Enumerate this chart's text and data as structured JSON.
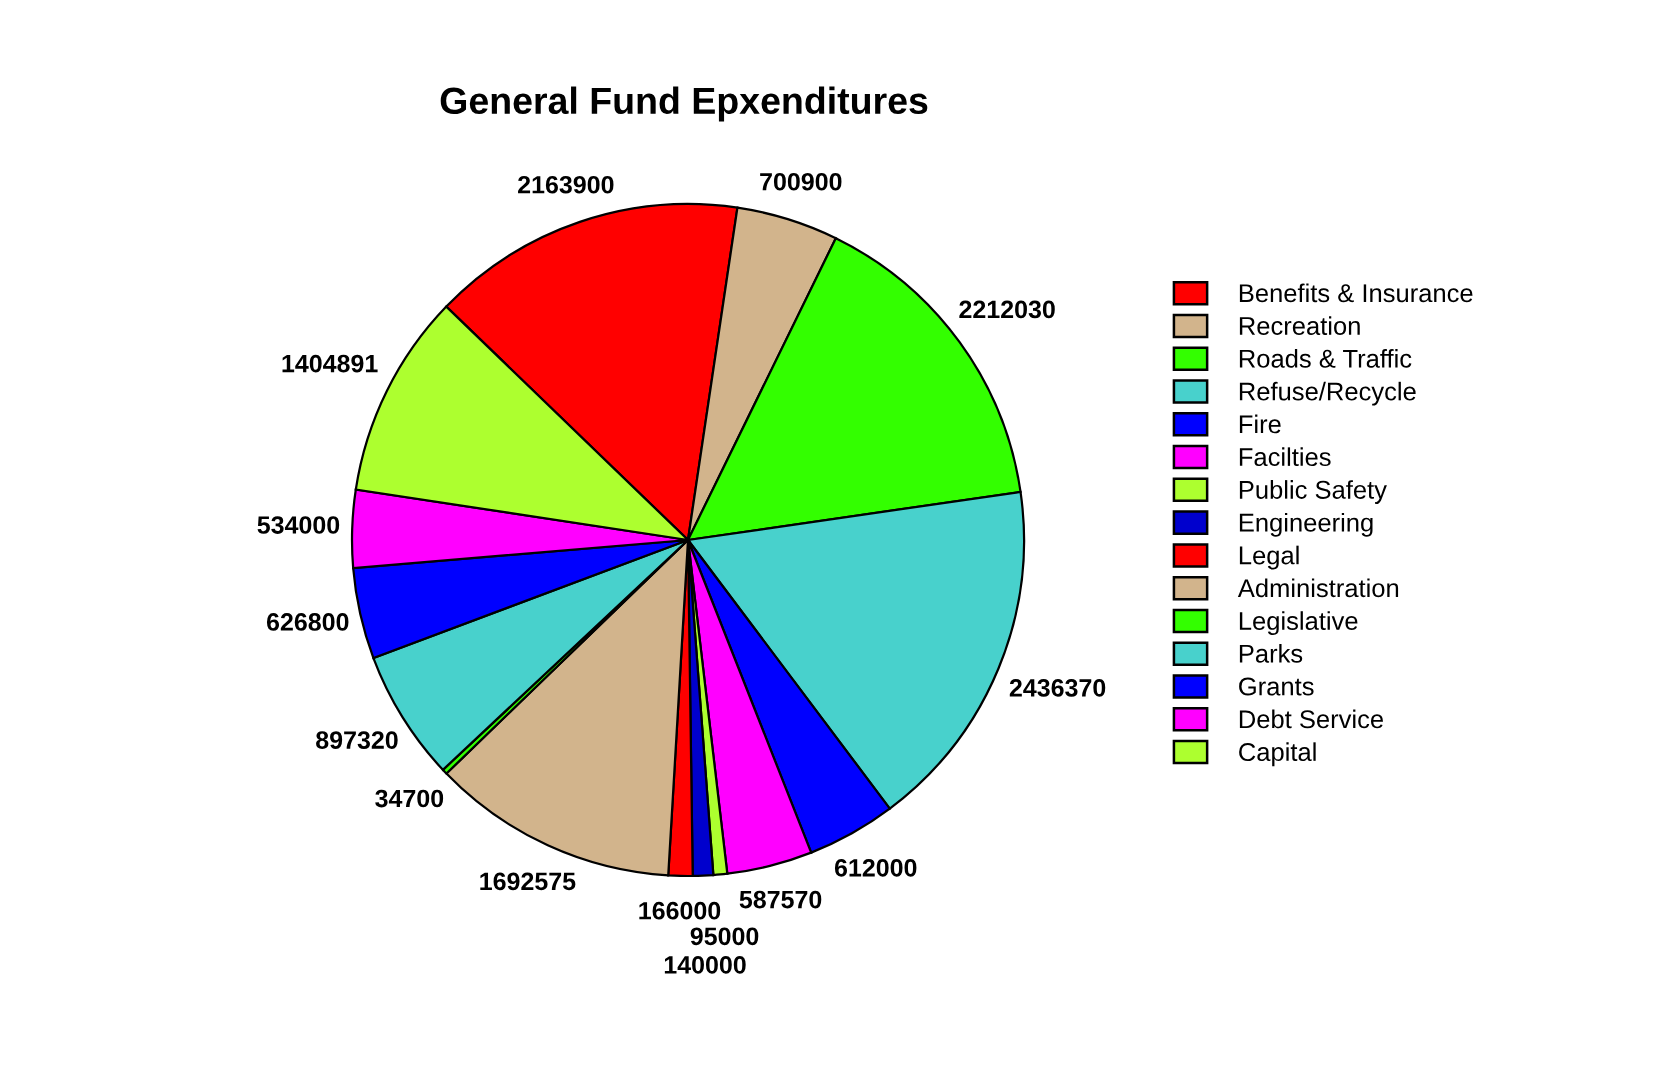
{
  "chart_data": {
    "type": "pie",
    "title": "General Fund Epxenditures",
    "categories": [
      "Benefits & Insurance",
      "Recreation",
      "Roads & Traffic",
      "Refuse/Recycle",
      "Fire",
      "Facilties",
      "Public Safety",
      "Engineering",
      "Legal",
      "Administration",
      "Legislative",
      "Parks",
      "Grants",
      "Debt Service",
      "Capital"
    ],
    "values": [
      2163900,
      700900,
      2212030,
      2436370,
      612000,
      587570,
      95000,
      140000,
      166000,
      1692575,
      34700,
      897320,
      626800,
      534000,
      1404891
    ],
    "colors": [
      "#ff0000",
      "#d2b48c",
      "#33ff00",
      "#48d1cc",
      "#0000ff",
      "#ff00ff",
      "#adff2f",
      "#0000cd",
      "#ff0000",
      "#d2b48c",
      "#33ff00",
      "#48d1cc",
      "#0000ff",
      "#ff00ff",
      "#adff2f"
    ],
    "data_labels": true,
    "legend": "right"
  }
}
